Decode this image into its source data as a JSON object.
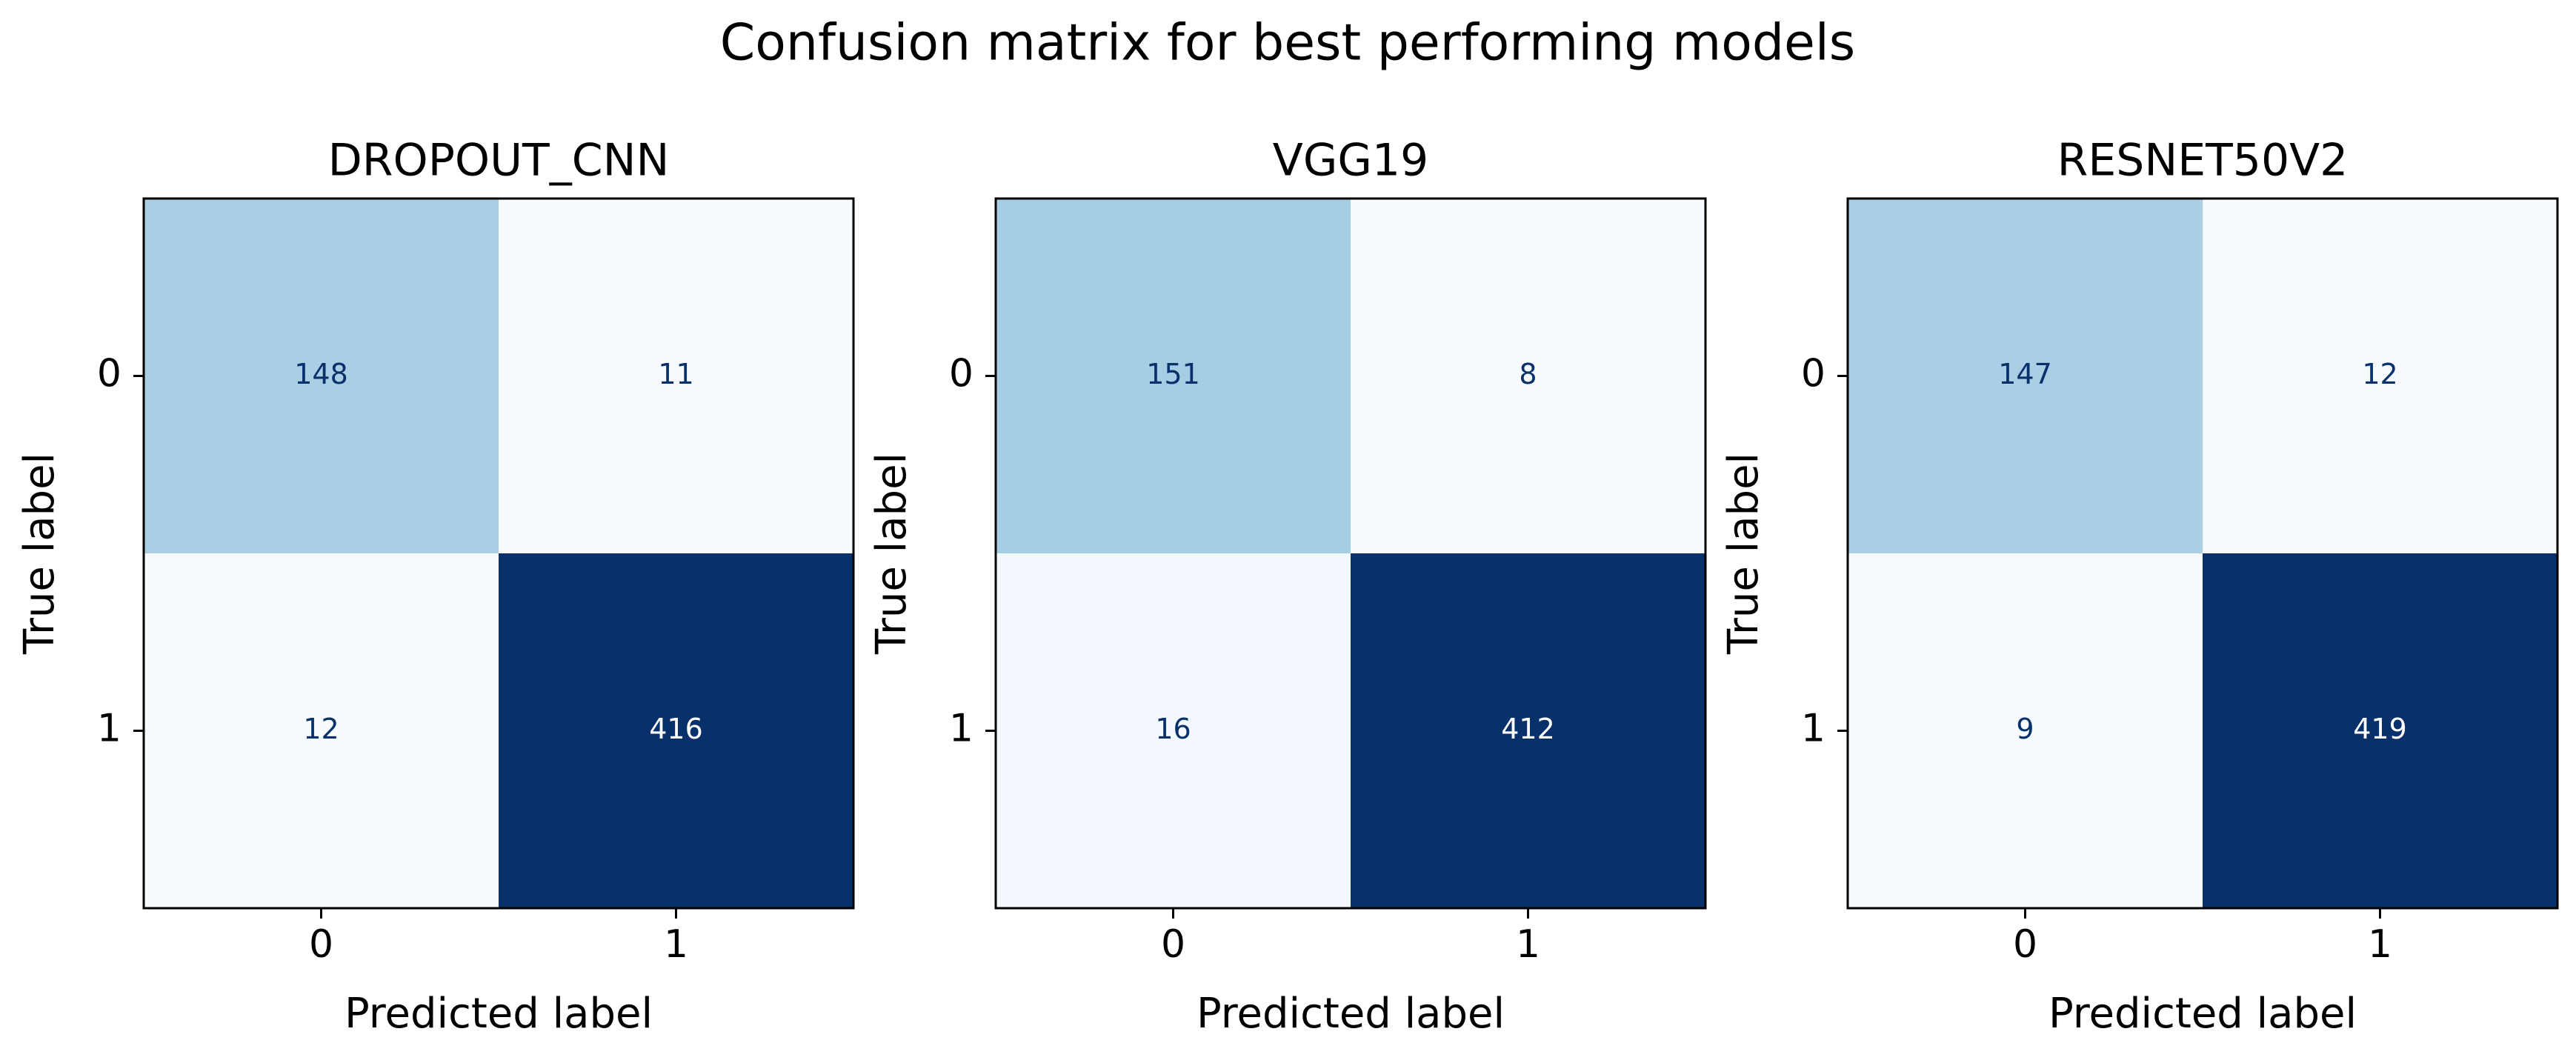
{
  "figure": {
    "suptitle": "Confusion matrix for best performing models"
  },
  "colormap": {
    "name": "Blues",
    "low_color": "#f7fbff",
    "high_color": "#08306b",
    "text_dark": "#08306b",
    "text_light": "#ffffff"
  },
  "chart_data": [
    {
      "type": "heatmap",
      "title": "DROPOUT_CNN",
      "xlabel": "Predicted label",
      "ylabel": "True label",
      "x_categories": [
        "0",
        "1"
      ],
      "y_categories": [
        "0",
        "1"
      ],
      "values": [
        [
          148,
          11
        ],
        [
          12,
          416
        ]
      ],
      "grid": false
    },
    {
      "type": "heatmap",
      "title": "VGG19",
      "xlabel": "Predicted label",
      "ylabel": "True label",
      "x_categories": [
        "0",
        "1"
      ],
      "y_categories": [
        "0",
        "1"
      ],
      "values": [
        [
          151,
          8
        ],
        [
          16,
          412
        ]
      ],
      "grid": false
    },
    {
      "type": "heatmap",
      "title": "RESNET50V2",
      "xlabel": "Predicted label",
      "ylabel": "True label",
      "x_categories": [
        "0",
        "1"
      ],
      "y_categories": [
        "0",
        "1"
      ],
      "values": [
        [
          147,
          12
        ],
        [
          9,
          419
        ]
      ],
      "grid": false
    }
  ]
}
